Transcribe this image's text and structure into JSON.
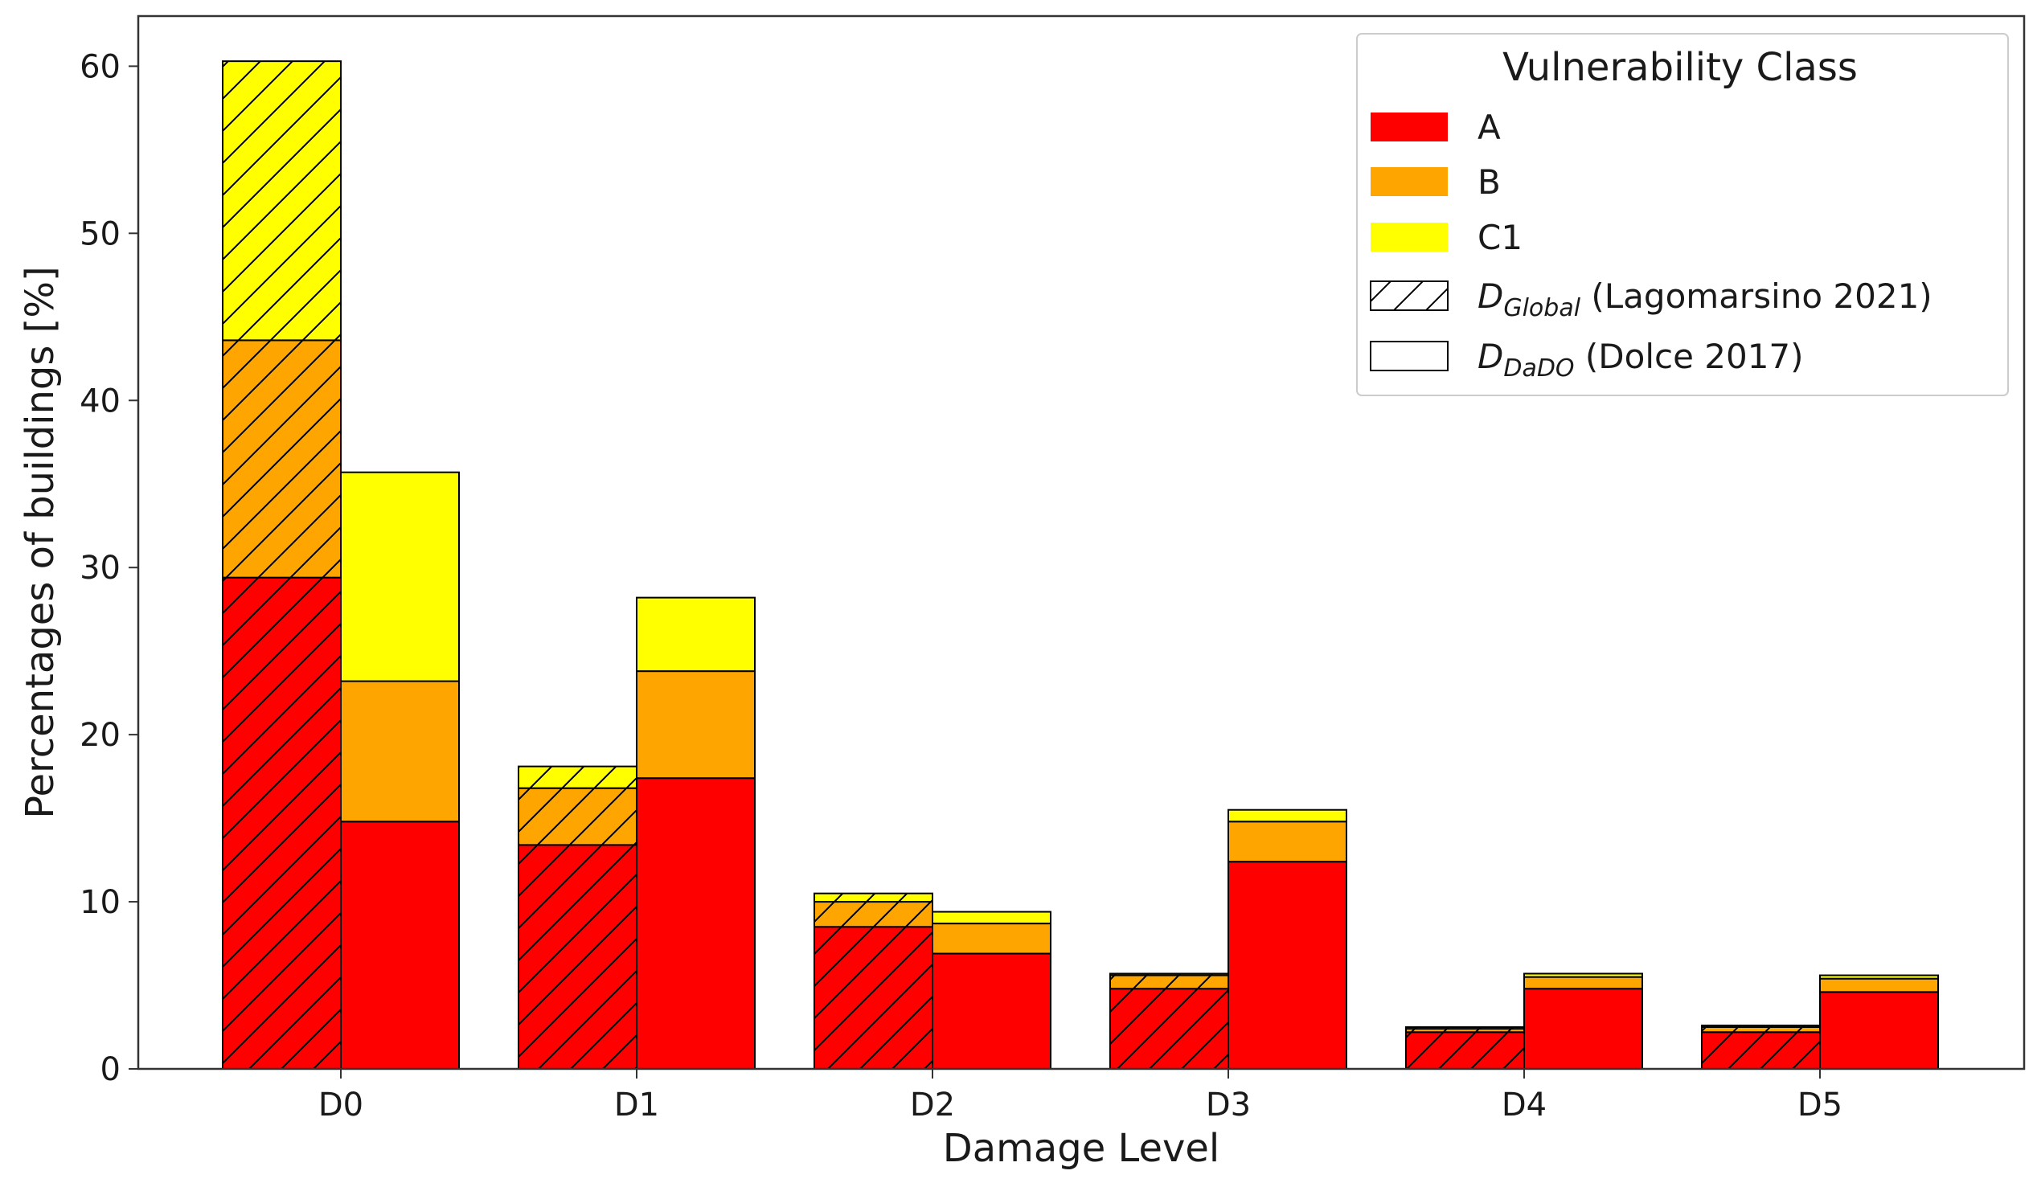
{
  "chart_data": {
    "type": "bar",
    "stacked": true,
    "grouped": true,
    "xlabel": "Damage Level",
    "ylabel": "Percentages of buildings [%]",
    "categories": [
      "D0",
      "D1",
      "D2",
      "D3",
      "D4",
      "D5"
    ],
    "ylim": [
      0,
      63
    ],
    "yticks": [
      0,
      10,
      20,
      30,
      40,
      50,
      60
    ],
    "grid": false,
    "legend": {
      "title": "Vulnerability Class",
      "placement": "top-right",
      "classes": [
        {
          "label": "A",
          "color": "#ff0000"
        },
        {
          "label": "B",
          "color": "#ffa500"
        },
        {
          "label": "C1",
          "color": "#ffff00"
        }
      ],
      "methods": [
        {
          "base": "D",
          "sub": "Global",
          "suffix": " (Lagomarsino 2021)",
          "hatched": true
        },
        {
          "base": "D",
          "sub": "DaDO",
          "suffix": " (Dolce 2017)",
          "hatched": false
        }
      ]
    },
    "groups": [
      {
        "method": "DGlobal (Lagomarsino 2021)",
        "hatched": true,
        "series": [
          {
            "name": "A",
            "values": [
              29.4,
              13.4,
              8.5,
              4.8,
              2.2,
              2.2
            ]
          },
          {
            "name": "B",
            "values": [
              14.2,
              3.4,
              1.5,
              0.8,
              0.2,
              0.3
            ]
          },
          {
            "name": "C1",
            "values": [
              16.7,
              1.3,
              0.5,
              0.1,
              0.1,
              0.1
            ]
          }
        ]
      },
      {
        "method": "DDaDO (Dolce 2017)",
        "hatched": false,
        "series": [
          {
            "name": "A",
            "values": [
              14.8,
              17.4,
              6.9,
              12.4,
              4.8,
              4.6
            ]
          },
          {
            "name": "B",
            "values": [
              8.4,
              6.4,
              1.8,
              2.4,
              0.7,
              0.8
            ]
          },
          {
            "name": "C1",
            "values": [
              12.5,
              4.4,
              0.7,
              0.7,
              0.2,
              0.2
            ]
          }
        ]
      }
    ]
  }
}
